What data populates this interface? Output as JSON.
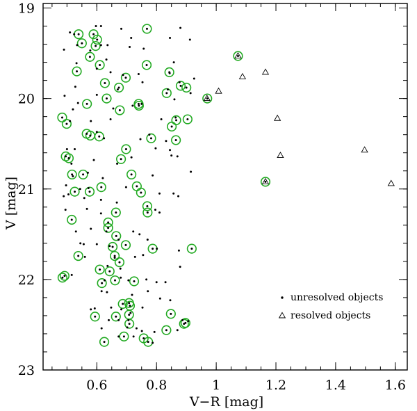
{
  "chart_data": {
    "type": "scatter",
    "xlabel": "V−R [mag]",
    "ylabel": "V [mag]",
    "xlim": [
      0.42,
      1.64
    ],
    "ylim": [
      23.0,
      18.95
    ],
    "y_inverted": true,
    "x_major_ticks": [
      0.6,
      0.8,
      1,
      1.2,
      1.4,
      1.6
    ],
    "x_tick_labels": [
      "0.6",
      "0.8",
      "1",
      "1.2",
      "1.4",
      "1.6"
    ],
    "x_minor_step": 0.05,
    "y_major_ticks": [
      19,
      20,
      21,
      22,
      23
    ],
    "y_tick_labels": [
      "19",
      "20",
      "21",
      "22",
      "23"
    ],
    "y_minor_step": 0.2,
    "grid": false,
    "legend_position": "lower-right",
    "colors": {
      "highlight": "#22aa22",
      "marker": "#000000"
    },
    "legend": {
      "unresolved": "unresolved objects",
      "resolved": "resolved objects"
    },
    "series": [
      {
        "name": "unresolved objects",
        "marker": "dot",
        "points": [
          [
            0.597,
            19.2
          ],
          [
            0.614,
            19.2
          ],
          [
            0.682,
            19.23
          ],
          [
            0.88,
            19.22
          ],
          [
            0.51,
            19.27
          ],
          [
            0.524,
            19.29
          ],
          [
            0.715,
            19.33
          ],
          [
            0.845,
            19.33
          ],
          [
            0.912,
            19.35
          ],
          [
            0.534,
            19.41
          ],
          [
            0.614,
            19.41
          ],
          [
            0.636,
            19.41
          ],
          [
            0.71,
            19.43
          ],
          [
            0.49,
            19.46
          ],
          [
            0.578,
            19.47
          ],
          [
            0.757,
            19.45
          ],
          [
            0.632,
            19.57
          ],
          [
            0.858,
            19.6
          ],
          [
            0.532,
            19.61
          ],
          [
            0.6,
            19.67
          ],
          [
            0.646,
            19.71
          ],
          [
            0.688,
            19.74
          ],
          [
            0.74,
            19.73
          ],
          [
            0.844,
            19.72
          ],
          [
            0.877,
            19.82
          ],
          [
            0.528,
            19.87
          ],
          [
            0.67,
            19.9
          ],
          [
            0.753,
            19.82
          ],
          [
            0.926,
            19.78
          ],
          [
            0.838,
            19.9
          ],
          [
            0.492,
            19.97
          ],
          [
            0.6,
            19.96
          ],
          [
            0.72,
            20.08
          ],
          [
            0.86,
            20.01
          ],
          [
            0.914,
            19.94
          ],
          [
            0.537,
            20.05
          ],
          [
            0.52,
            20.12
          ],
          [
            0.655,
            20.11
          ],
          [
            0.75,
            20.06
          ],
          [
            0.816,
            20.23
          ],
          [
            0.864,
            20.21
          ],
          [
            0.51,
            20.25
          ],
          [
            0.58,
            20.25
          ],
          [
            0.646,
            20.23
          ],
          [
            0.776,
            20.4
          ],
          [
            0.832,
            20.47
          ],
          [
            0.6,
            20.37
          ],
          [
            0.624,
            20.44
          ],
          [
            0.5,
            20.56
          ],
          [
            0.526,
            20.56
          ],
          [
            0.746,
            20.45
          ],
          [
            0.797,
            20.55
          ],
          [
            0.845,
            20.57
          ],
          [
            0.59,
            20.68
          ],
          [
            0.668,
            20.72
          ],
          [
            0.716,
            20.65
          ],
          [
            0.85,
            20.63
          ],
          [
            0.87,
            20.64
          ],
          [
            0.515,
            20.72
          ],
          [
            0.57,
            20.82
          ],
          [
            0.52,
            20.86
          ],
          [
            0.62,
            20.88
          ],
          [
            0.787,
            20.85
          ],
          [
            0.915,
            20.81
          ],
          [
            0.497,
            20.96
          ],
          [
            0.544,
            21.0
          ],
          [
            0.572,
            20.99
          ],
          [
            0.698,
            20.98
          ],
          [
            0.505,
            21.06
          ],
          [
            0.489,
            21.08
          ],
          [
            0.558,
            21.1
          ],
          [
            0.614,
            21.12
          ],
          [
            0.667,
            21.15
          ],
          [
            0.81,
            21.05
          ],
          [
            0.857,
            21.05
          ],
          [
            0.873,
            21.08
          ],
          [
            0.495,
            21.23
          ],
          [
            0.567,
            21.22
          ],
          [
            0.614,
            21.27
          ],
          [
            0.796,
            21.23
          ],
          [
            0.81,
            21.26
          ],
          [
            0.53,
            21.47
          ],
          [
            0.58,
            21.44
          ],
          [
            0.632,
            21.47
          ],
          [
            0.722,
            21.47
          ],
          [
            0.743,
            21.5
          ],
          [
            0.545,
            21.6
          ],
          [
            0.556,
            21.61
          ],
          [
            0.6,
            21.61
          ],
          [
            0.643,
            21.63
          ],
          [
            0.673,
            21.56
          ],
          [
            0.77,
            21.56
          ],
          [
            0.801,
            21.66
          ],
          [
            0.875,
            21.68
          ],
          [
            0.56,
            21.75
          ],
          [
            0.66,
            21.76
          ],
          [
            0.728,
            21.75
          ],
          [
            0.755,
            21.73
          ],
          [
            0.636,
            21.85
          ],
          [
            0.679,
            21.88
          ],
          [
            0.879,
            21.86
          ],
          [
            0.516,
            21.95
          ],
          [
            0.626,
            22.01
          ],
          [
            0.68,
            21.98
          ],
          [
            0.706,
            22.01
          ],
          [
            0.766,
            22.0
          ],
          [
            0.8,
            22.03
          ],
          [
            0.83,
            22.03
          ],
          [
            0.616,
            22.13
          ],
          [
            0.634,
            22.14
          ],
          [
            0.718,
            22.17
          ],
          [
            0.771,
            22.13
          ],
          [
            0.812,
            22.21
          ],
          [
            0.846,
            22.23
          ],
          [
            0.58,
            22.33
          ],
          [
            0.593,
            22.32
          ],
          [
            0.648,
            22.31
          ],
          [
            0.682,
            22.33
          ],
          [
            0.713,
            22.37
          ],
          [
            0.753,
            22.31
          ],
          [
            0.64,
            22.45
          ],
          [
            0.673,
            22.45
          ],
          [
            0.706,
            22.45
          ],
          [
            0.887,
            22.45
          ],
          [
            0.906,
            22.46
          ],
          [
            0.616,
            22.54
          ],
          [
            0.702,
            22.53
          ],
          [
            0.733,
            22.54
          ],
          [
            0.751,
            22.57
          ],
          [
            0.793,
            22.58
          ],
          [
            0.87,
            22.56
          ],
          [
            0.673,
            22.63
          ],
          [
            0.723,
            22.63
          ],
          [
            0.787,
            22.7
          ]
        ]
      },
      {
        "name": "resolved objects",
        "marker": "triangle",
        "points": [
          [
            1.073,
            19.53
          ],
          [
            1.165,
            19.71
          ],
          [
            1.088,
            19.76
          ],
          [
            0.969,
            20.0
          ],
          [
            1.008,
            19.92
          ],
          [
            1.205,
            20.22
          ],
          [
            1.215,
            20.63
          ],
          [
            1.497,
            20.57
          ],
          [
            1.586,
            20.94
          ],
          [
            1.165,
            20.92
          ]
        ]
      }
    ],
    "highlighted": [
      [
        0.539,
        19.29
      ],
      [
        0.589,
        19.29
      ],
      [
        0.768,
        19.23
      ],
      [
        0.55,
        19.39
      ],
      [
        0.601,
        19.35
      ],
      [
        0.596,
        19.42
      ],
      [
        0.577,
        19.54
      ],
      [
        0.61,
        19.63
      ],
      [
        0.533,
        19.7
      ],
      [
        0.767,
        19.63
      ],
      [
        0.843,
        19.71
      ],
      [
        0.697,
        19.77
      ],
      [
        0.627,
        19.83
      ],
      [
        0.674,
        19.88
      ],
      [
        0.881,
        19.86
      ],
      [
        0.9,
        19.88
      ],
      [
        0.834,
        19.94
      ],
      [
        0.633,
        20.0
      ],
      [
        0.97,
        20.0
      ],
      [
        0.567,
        20.06
      ],
      [
        0.74,
        20.06
      ],
      [
        0.741,
        20.08
      ],
      [
        0.677,
        20.13
      ],
      [
        0.866,
        20.24
      ],
      [
        0.904,
        20.23
      ],
      [
        0.484,
        20.21
      ],
      [
        0.499,
        20.28
      ],
      [
        0.851,
        20.31
      ],
      [
        0.566,
        20.39
      ],
      [
        0.578,
        20.41
      ],
      [
        0.608,
        20.42
      ],
      [
        0.782,
        20.44
      ],
      [
        0.865,
        20.46
      ],
      [
        0.698,
        20.56
      ],
      [
        0.496,
        20.64
      ],
      [
        0.506,
        20.66
      ],
      [
        0.681,
        20.67
      ],
      [
        0.517,
        20.84
      ],
      [
        0.554,
        20.84
      ],
      [
        0.716,
        20.84
      ],
      [
        0.615,
        20.98
      ],
      [
        0.734,
        20.97
      ],
      [
        0.526,
        21.03
      ],
      [
        0.576,
        21.03
      ],
      [
        0.748,
        21.04
      ],
      [
        0.769,
        21.19
      ],
      [
        0.77,
        21.26
      ],
      [
        0.664,
        21.26
      ],
      [
        0.516,
        21.34
      ],
      [
        0.638,
        21.37
      ],
      [
        0.638,
        21.43
      ],
      [
        0.665,
        21.52
      ],
      [
        0.697,
        21.62
      ],
      [
        0.653,
        21.64
      ],
      [
        0.787,
        21.66
      ],
      [
        0.918,
        21.66
      ],
      [
        0.538,
        21.74
      ],
      [
        0.66,
        21.74
      ],
      [
        0.676,
        21.81
      ],
      [
        0.643,
        21.91
      ],
      [
        0.61,
        21.89
      ],
      [
        0.492,
        21.96
      ],
      [
        0.485,
        21.98
      ],
      [
        0.617,
        22.04
      ],
      [
        0.661,
        22.01
      ],
      [
        0.725,
        22.02
      ],
      [
        0.687,
        22.27
      ],
      [
        0.708,
        22.26
      ],
      [
        0.711,
        22.29
      ],
      [
        0.594,
        22.41
      ],
      [
        0.848,
        22.38
      ],
      [
        0.664,
        22.41
      ],
      [
        0.708,
        22.39
      ],
      [
        0.709,
        22.49
      ],
      [
        0.897,
        22.48
      ],
      [
        0.892,
        22.49
      ],
      [
        0.833,
        22.56
      ],
      [
        0.691,
        22.63
      ],
      [
        0.757,
        22.65
      ],
      [
        0.772,
        22.69
      ],
      [
        0.625,
        22.69
      ],
      [
        1.073,
        19.53
      ],
      [
        1.165,
        20.92
      ]
    ]
  }
}
